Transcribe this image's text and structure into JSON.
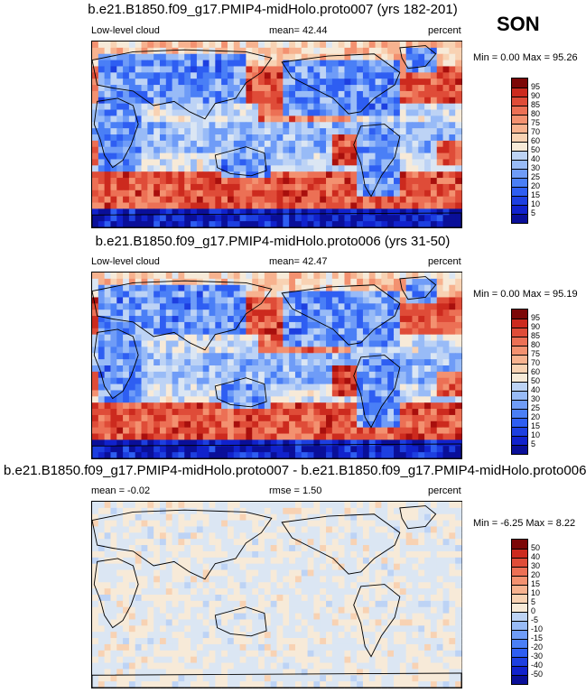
{
  "season": "SON",
  "colorbar_colors": [
    "#0a0f99",
    "#1122cc",
    "#1d3fe0",
    "#2e5ef2",
    "#4a7ff6",
    "#6f9cf7",
    "#98bbf7",
    "#bdd3f5",
    "#dbe6f3",
    "#f7ead8",
    "#f8d2b3",
    "#f7b28f",
    "#f39170",
    "#ec7055",
    "#df4c38",
    "#cc2a1e",
    "#a80f0d",
    "#7c0707"
  ],
  "panels": [
    {
      "title": "b.e21.B1850.f09_g17.PMIP4-midHolo.proto007 (yrs 182-201)",
      "left_label": "Low-level cloud",
      "stat_label": "mean=  42.44",
      "right_label": "percent",
      "minmax": "Min =   0.00 Max =  95.26",
      "ticks": [
        "95",
        "90",
        "85",
        "80",
        "75",
        "70",
        "60",
        "50",
        "40",
        "30",
        "25",
        "20",
        "15",
        "10",
        "5"
      ],
      "kind": "clim"
    },
    {
      "title": "b.e21.B1850.f09_g17.PMIP4-midHolo.proto006 (yrs 31-50)",
      "left_label": "Low-level cloud",
      "stat_label": "mean=  42.47",
      "right_label": "percent",
      "minmax": "Min =   0.00 Max =  95.19",
      "ticks": [
        "95",
        "90",
        "85",
        "80",
        "75",
        "70",
        "60",
        "50",
        "40",
        "30",
        "25",
        "20",
        "15",
        "10",
        "5"
      ],
      "kind": "clim"
    },
    {
      "title": "b.e21.B1850.f09_g17.PMIP4-midHolo.proto007 - b.e21.B1850.f09_g17.PMIP4-midHolo.proto006",
      "left_label": "mean =  -0.02",
      "stat_label": "rmse =   1.50",
      "right_label": "percent",
      "minmax": "Min =  -6.25 Max =   8.22",
      "ticks": [
        "50",
        "40",
        "30",
        "20",
        "15",
        "10",
        "5",
        "0",
        "-5",
        "-10",
        "-15",
        "-20",
        "-30",
        "-40",
        "-50"
      ],
      "kind": "diff"
    }
  ]
}
